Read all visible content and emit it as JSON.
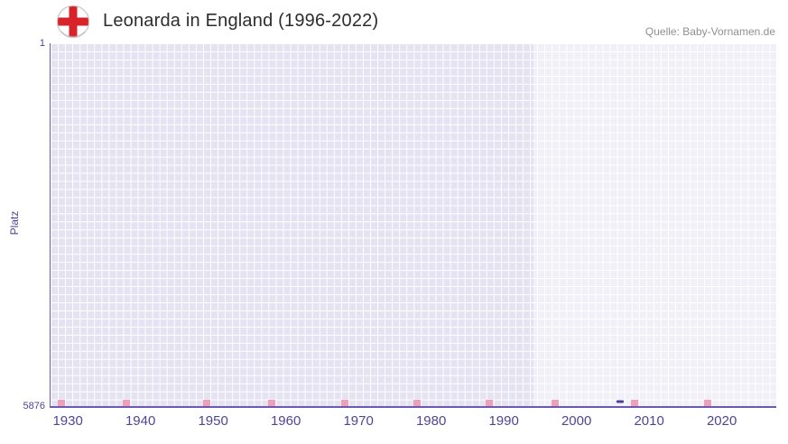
{
  "header": {
    "title": "Leonarda in England (1996-2022)",
    "source": "Quelle: Baby-Vornamen.de"
  },
  "colors": {
    "plot_bg": "#e5e2f1",
    "grid_line": "#ffffff",
    "axis_line": "#6c5ab0",
    "tick_label": "#4f4596",
    "point": "#4b3fa0",
    "bottom_tick": "#ee9fb9",
    "highlight_overlay": "rgba(255,255,255,0.45)",
    "flag_red": "#d8232a",
    "title_color": "#2d2d2d",
    "source_color": "#909090"
  },
  "chart_data": {
    "type": "scatter",
    "title": "Leonarda in England (1996-2022)",
    "xlabel": "",
    "ylabel": "Platz",
    "grid": true,
    "legend": false,
    "y_axis": {
      "top_label": "1",
      "bottom_label": "5876",
      "min": 1,
      "max": 5876,
      "inverted": true
    },
    "x_axis": {
      "min": 1927.5,
      "max": 2027.5,
      "tick_years": [
        1930,
        1940,
        1950,
        1960,
        1970,
        1980,
        1990,
        2000,
        2010,
        2020
      ]
    },
    "highlight_band": {
      "from": 1994,
      "to": 2027.5,
      "note": "data period highlight"
    },
    "bottom_ticks_years": [
      1929,
      1938,
      1949,
      1958,
      1968,
      1978,
      1988,
      1997,
      2008,
      2018
    ],
    "series": [
      {
        "name": "Leonarda",
        "points": [
          {
            "x": 2006,
            "y": 5800
          }
        ]
      }
    ]
  }
}
